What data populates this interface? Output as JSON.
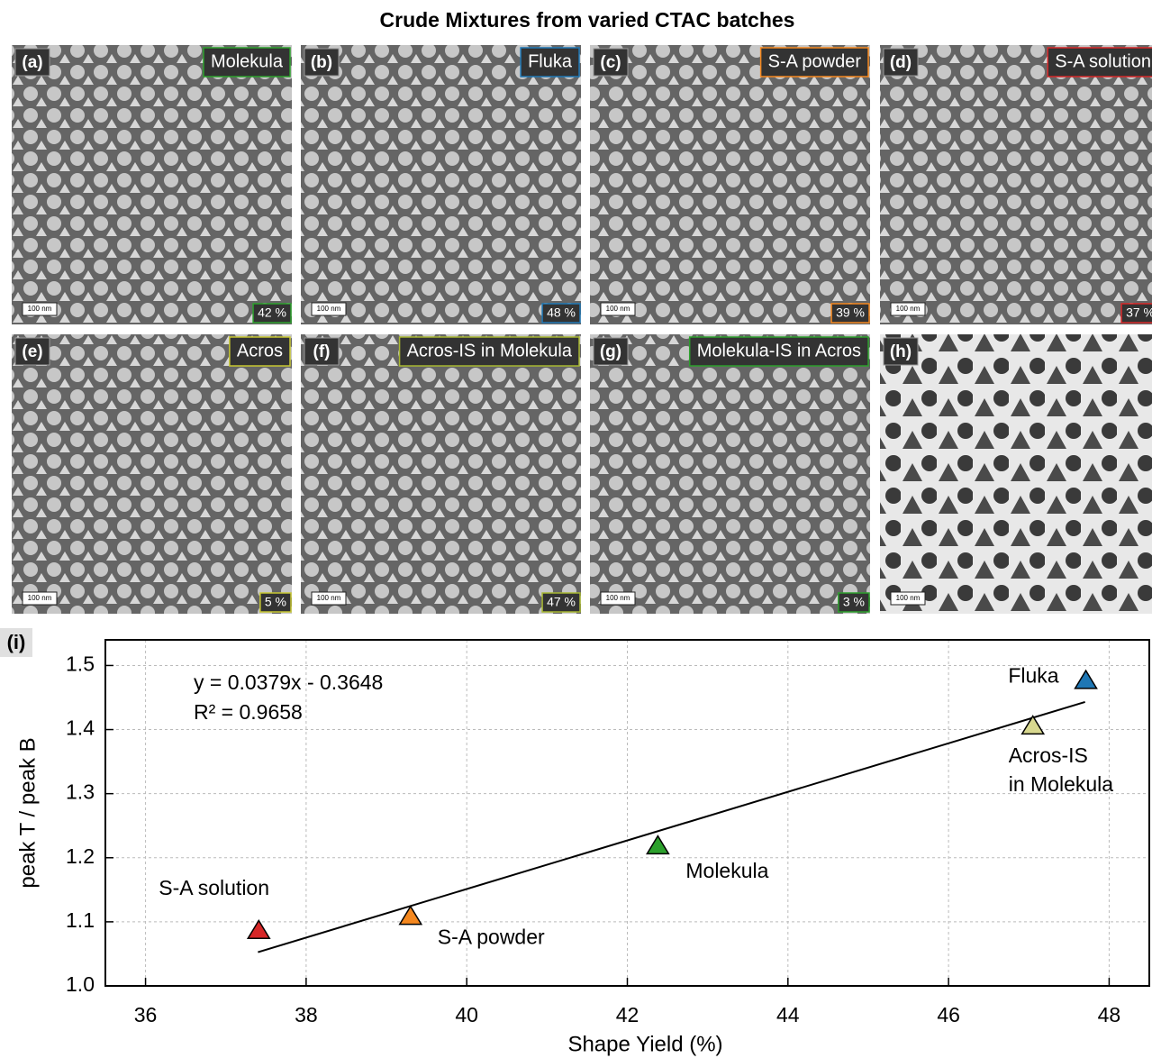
{
  "title": "Crude Mixtures from varied CTAC batches",
  "panels": [
    {
      "label": "(a)",
      "name": "Molekula",
      "color": "#2ca02c",
      "scale": "100 nm",
      "yield": "42 %"
    },
    {
      "label": "(b)",
      "name": "Fluka",
      "color": "#1f77b4",
      "scale": "100 nm",
      "yield": "48 %"
    },
    {
      "label": "(c)",
      "name": "S-A powder",
      "color": "#f5881f",
      "scale": "100 nm",
      "yield": "39 %"
    },
    {
      "label": "(d)",
      "name": "S-A solution",
      "color": "#d62728",
      "scale": "100 nm",
      "yield": "37 %"
    },
    {
      "label": "(e)",
      "name": "Acros",
      "color": "#c8c832",
      "scale": "100 nm",
      "yield": "5 %"
    },
    {
      "label": "(f)",
      "name": "Acros-IS in Molekula",
      "color": "#a8b832",
      "scale": "100 nm",
      "yield": "47 %"
    },
    {
      "label": "(g)",
      "name": "Molekula-IS in Acros",
      "color": "#2ca02c",
      "scale": "100 nm",
      "yield": "3 %"
    },
    {
      "label": "(h)",
      "scale": "100 nm"
    }
  ],
  "chart_data": {
    "type": "scatter",
    "panel_label": "(i)",
    "x_label": "Shape Yield (%)",
    "y_label": "peak T / peak B",
    "xlim": [
      35.5,
      48.5
    ],
    "ylim": [
      1.0,
      1.54
    ],
    "xticks": [
      36,
      38,
      40,
      42,
      44,
      46,
      48
    ],
    "yticks": [
      {
        "value": 1,
        "label": "1.0"
      },
      1.1,
      1.2,
      1.3,
      1.4,
      1.5
    ],
    "grid": true,
    "series": [
      {
        "label": [
          "S-A solution"
        ],
        "color": "#d62728",
        "x": [
          37.41
        ],
        "y": [
          1.086
        ]
      },
      {
        "label": [
          "S-A powder"
        ],
        "color": "#f5881f",
        "x": [
          39.3
        ],
        "y": [
          1.108
        ]
      },
      {
        "label": [
          "Molekula"
        ],
        "color": "#2ca02c",
        "x": [
          42.38
        ],
        "y": [
          1.218
        ]
      },
      {
        "label": [
          "Acros-IS",
          "in Molekula"
        ],
        "color": "#d8d88f",
        "x": [
          47.05
        ],
        "y": [
          1.405
        ]
      },
      {
        "label": [
          "Fluka"
        ],
        "color": "#1f77b4",
        "x": [
          47.71
        ],
        "y": [
          1.476
        ]
      }
    ],
    "fit": {
      "equation": "y = 0.0379x - 0.3648",
      "r2": "R² = 0.9658",
      "slope": 0.0379,
      "intercept": -0.3648,
      "xrange": [
        37.4,
        47.7
      ]
    }
  }
}
